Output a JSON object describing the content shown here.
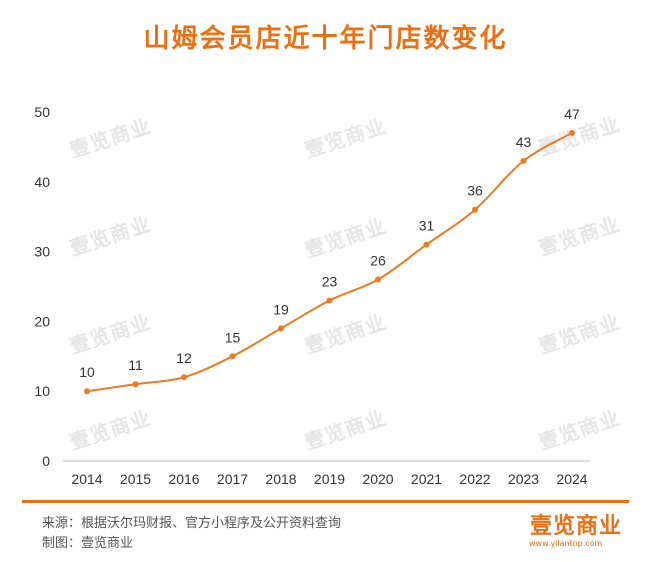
{
  "title": "山姆会员店近十年门店数变化",
  "chart_data": {
    "type": "line",
    "title": "山姆会员店近十年门店数变化",
    "xlabel": "",
    "ylabel": "",
    "categories": [
      "2014",
      "2015",
      "2016",
      "2017",
      "2018",
      "2019",
      "2020",
      "2021",
      "2022",
      "2023",
      "2024"
    ],
    "values": [
      10,
      11,
      12,
      15,
      19,
      23,
      26,
      31,
      36,
      43,
      47
    ],
    "ylim": [
      0,
      50
    ],
    "yticks": [
      0,
      10,
      20,
      30,
      40,
      50
    ],
    "grid": false,
    "color": "#f07a1e"
  },
  "footer": {
    "source": "来源：根据沃尔玛财报、官方小程序及公开资料查询",
    "maker": "制图：壹览商业"
  },
  "brand": {
    "name": "壹览商业",
    "url": "www.yilantop.com"
  },
  "watermark": "壹览商业"
}
